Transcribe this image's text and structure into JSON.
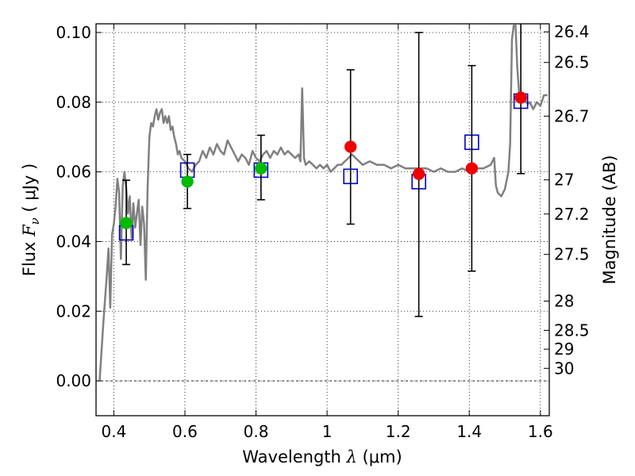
{
  "chart_data": {
    "type": "scatter",
    "xlabel": {
      "prefix": "Wavelength ",
      "symbol": "λ",
      "unit": " (μm)"
    },
    "ylabel": {
      "prefix": "Flux ",
      "symbol": "F",
      "subscript": "ν",
      "unit": " ( μJy )"
    },
    "y2label": "Magnitude (AB)",
    "xlim": [
      0.35,
      1.625
    ],
    "ylim": [
      -0.01,
      0.1025
    ],
    "grid": true,
    "x_ticks": [
      {
        "value": 0.4,
        "label": "0.4"
      },
      {
        "value": 0.6,
        "label": "0.6"
      },
      {
        "value": 0.8,
        "label": "0.8"
      },
      {
        "value": 1.0,
        "label": "1"
      },
      {
        "value": 1.2,
        "label": "1.2"
      },
      {
        "value": 1.4,
        "label": "1.4"
      },
      {
        "value": 1.6,
        "label": "1.6"
      }
    ],
    "y_ticks": [
      {
        "value": 0.0,
        "label": "0.00"
      },
      {
        "value": 0.02,
        "label": "0.02"
      },
      {
        "value": 0.04,
        "label": "0.04"
      },
      {
        "value": 0.06,
        "label": "0.06"
      },
      {
        "value": 0.08,
        "label": "0.08"
      },
      {
        "value": 0.1,
        "label": "0.10"
      }
    ],
    "y2_ticks": [
      {
        "label": "26.4",
        "flux": 0.1002
      },
      {
        "label": "26.5",
        "flux": 0.0914
      },
      {
        "label": "26.7",
        "flux": 0.076
      },
      {
        "label": "27",
        "flux": 0.0577
      },
      {
        "label": "27.2",
        "flux": 0.0479
      },
      {
        "label": "27.5",
        "flux": 0.0363
      },
      {
        "label": "28",
        "flux": 0.0229
      },
      {
        "label": "28.5",
        "flux": 0.0145
      },
      {
        "label": "29",
        "flux": 0.0091
      },
      {
        "label": "30",
        "flux": 0.0036
      }
    ],
    "series": [
      {
        "kind": "model_sed",
        "color": "#808080",
        "points": [
          [
            0.36,
            0.0
          ],
          [
            0.37,
            0.016
          ],
          [
            0.38,
            0.03
          ],
          [
            0.385,
            0.038
          ],
          [
            0.39,
            0.021
          ],
          [
            0.395,
            0.042
          ],
          [
            0.4,
            0.045
          ],
          [
            0.405,
            0.05
          ],
          [
            0.41,
            0.058
          ],
          [
            0.415,
            0.054
          ],
          [
            0.42,
            0.035
          ],
          [
            0.425,
            0.056
          ],
          [
            0.43,
            0.06
          ],
          [
            0.435,
            0.055
          ],
          [
            0.44,
            0.048
          ],
          [
            0.445,
            0.053
          ],
          [
            0.45,
            0.041
          ],
          [
            0.455,
            0.051
          ],
          [
            0.46,
            0.044
          ],
          [
            0.465,
            0.048
          ],
          [
            0.47,
            0.052
          ],
          [
            0.475,
            0.039
          ],
          [
            0.48,
            0.05
          ],
          [
            0.485,
            0.045
          ],
          [
            0.49,
            0.029
          ],
          [
            0.495,
            0.055
          ],
          [
            0.5,
            0.07
          ],
          [
            0.505,
            0.074
          ],
          [
            0.51,
            0.073
          ],
          [
            0.515,
            0.076
          ],
          [
            0.52,
            0.078
          ],
          [
            0.525,
            0.075
          ],
          [
            0.53,
            0.077
          ],
          [
            0.535,
            0.078
          ],
          [
            0.54,
            0.074
          ],
          [
            0.545,
            0.076
          ],
          [
            0.55,
            0.074
          ],
          [
            0.555,
            0.076
          ],
          [
            0.56,
            0.072
          ],
          [
            0.565,
            0.073
          ],
          [
            0.57,
            0.07
          ],
          [
            0.575,
            0.068
          ],
          [
            0.58,
            0.065
          ],
          [
            0.585,
            0.066
          ],
          [
            0.59,
            0.064
          ],
          [
            0.6,
            0.063
          ],
          [
            0.61,
            0.061
          ],
          [
            0.62,
            0.06
          ],
          [
            0.63,
            0.062
          ],
          [
            0.64,
            0.063
          ],
          [
            0.65,
            0.066
          ],
          [
            0.66,
            0.064
          ],
          [
            0.67,
            0.067
          ],
          [
            0.68,
            0.065
          ],
          [
            0.69,
            0.068
          ],
          [
            0.7,
            0.066
          ],
          [
            0.71,
            0.065
          ],
          [
            0.72,
            0.069
          ],
          [
            0.73,
            0.067
          ],
          [
            0.74,
            0.065
          ],
          [
            0.75,
            0.063
          ],
          [
            0.76,
            0.065
          ],
          [
            0.77,
            0.064
          ],
          [
            0.78,
            0.062
          ],
          [
            0.79,
            0.066
          ],
          [
            0.8,
            0.064
          ],
          [
            0.81,
            0.063
          ],
          [
            0.82,
            0.065
          ],
          [
            0.83,
            0.066
          ],
          [
            0.84,
            0.064
          ],
          [
            0.85,
            0.066
          ],
          [
            0.86,
            0.065
          ],
          [
            0.87,
            0.067
          ],
          [
            0.88,
            0.065
          ],
          [
            0.89,
            0.066
          ],
          [
            0.9,
            0.065
          ],
          [
            0.91,
            0.064
          ],
          [
            0.92,
            0.065
          ],
          [
            0.925,
            0.063
          ],
          [
            0.93,
            0.084
          ],
          [
            0.935,
            0.064
          ],
          [
            0.94,
            0.062
          ],
          [
            0.95,
            0.063
          ],
          [
            0.96,
            0.062
          ],
          [
            0.97,
            0.061
          ],
          [
            0.98,
            0.062
          ],
          [
            0.99,
            0.061
          ],
          [
            1.0,
            0.062
          ],
          [
            1.01,
            0.06
          ],
          [
            1.02,
            0.061
          ],
          [
            1.03,
            0.062
          ],
          [
            1.04,
            0.062
          ],
          [
            1.05,
            0.063
          ],
          [
            1.06,
            0.064
          ],
          [
            1.07,
            0.065
          ],
          [
            1.08,
            0.064
          ],
          [
            1.09,
            0.063
          ],
          [
            1.1,
            0.062
          ],
          [
            1.12,
            0.063
          ],
          [
            1.14,
            0.062
          ],
          [
            1.16,
            0.062
          ],
          [
            1.18,
            0.061
          ],
          [
            1.2,
            0.062
          ],
          [
            1.22,
            0.061
          ],
          [
            1.24,
            0.061
          ],
          [
            1.26,
            0.061
          ],
          [
            1.28,
            0.061
          ],
          [
            1.3,
            0.06
          ],
          [
            1.32,
            0.061
          ],
          [
            1.34,
            0.06
          ],
          [
            1.36,
            0.06
          ],
          [
            1.38,
            0.061
          ],
          [
            1.4,
            0.06
          ],
          [
            1.42,
            0.061
          ],
          [
            1.44,
            0.061
          ],
          [
            1.46,
            0.062
          ],
          [
            1.47,
            0.064
          ],
          [
            1.475,
            0.056
          ],
          [
            1.48,
            0.054
          ],
          [
            1.49,
            0.053
          ],
          [
            1.5,
            0.055
          ],
          [
            1.51,
            0.06
          ],
          [
            1.515,
            0.068
          ],
          [
            1.52,
            0.098
          ],
          [
            1.525,
            0.102
          ],
          [
            1.53,
            0.102
          ],
          [
            1.535,
            0.09
          ],
          [
            1.54,
            0.083
          ],
          [
            1.55,
            0.082
          ],
          [
            1.56,
            0.08
          ],
          [
            1.565,
            0.0795
          ],
          [
            1.57,
            0.08
          ],
          [
            1.58,
            0.078
          ],
          [
            1.59,
            0.08
          ],
          [
            1.6,
            0.079
          ],
          [
            1.61,
            0.082
          ],
          [
            1.62,
            0.082
          ]
        ]
      },
      {
        "kind": "model_photometry",
        "marker": "open-square",
        "color": "#0000cc",
        "points": [
          [
            0.435,
            0.0425
          ],
          [
            0.607,
            0.0605
          ],
          [
            0.814,
            0.0605
          ],
          [
            1.066,
            0.0587
          ],
          [
            1.258,
            0.0572
          ],
          [
            1.407,
            0.0685
          ],
          [
            1.545,
            0.0803
          ]
        ]
      },
      {
        "kind": "observed_acs",
        "marker": "filled-circle",
        "color": "#00bb00",
        "points": [
          {
            "x": 0.435,
            "y": 0.0453,
            "yerr": [
              0.0334,
              0.0576
            ]
          },
          {
            "x": 0.607,
            "y": 0.0572,
            "yerr": [
              0.0495,
              0.065
            ]
          },
          {
            "x": 0.814,
            "y": 0.061,
            "yerr": [
              0.052,
              0.0705
            ]
          }
        ]
      },
      {
        "kind": "observed_wfc3",
        "marker": "filled-circle",
        "color": "#ee0000",
        "points": [
          {
            "x": 1.066,
            "y": 0.0672,
            "yerr": [
              0.045,
              0.0893
            ]
          },
          {
            "x": 1.258,
            "y": 0.0594,
            "yerr": [
              0.0185,
              0.1
            ]
          },
          {
            "x": 1.407,
            "y": 0.061,
            "yerr": [
              0.0315,
              0.0905
            ]
          },
          {
            "x": 1.545,
            "y": 0.0813,
            "yerr": [
              0.0595,
              0.103
            ]
          }
        ]
      }
    ]
  }
}
